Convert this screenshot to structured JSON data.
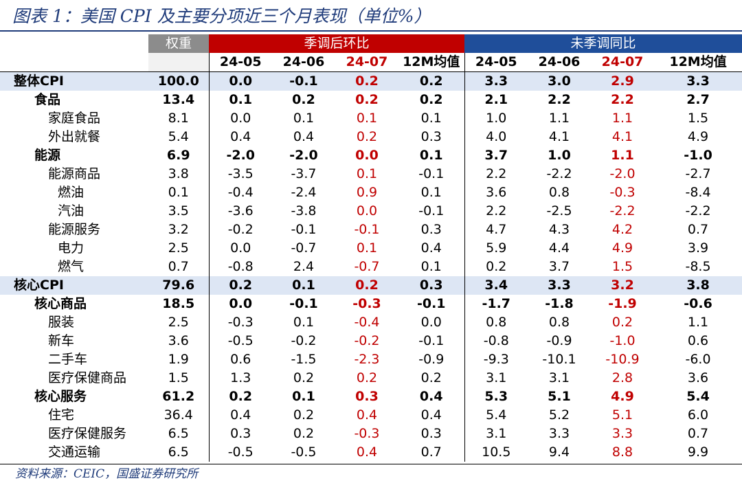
{
  "title": "图表 1：美国 CPI 及主要分项近三个月表现（单位%）",
  "headers": {
    "weight": "权重",
    "sa_group": "季调后环比",
    "nsa_group": "未季调同比",
    "periods": [
      "24-05",
      "24-06",
      "24-07",
      "12M均值",
      "24-05",
      "24-06",
      "24-07",
      "12M均值"
    ]
  },
  "colors": {
    "weight_header": "#8c8c8c",
    "sa_header": "#c00000",
    "nsa_header": "#1f4e9a",
    "band": "#dde6f4",
    "highlight": "#c00000",
    "title": "#1f3b7a"
  },
  "rows": [
    {
      "name": "整体CPI",
      "weight": "100.0",
      "sa": [
        "0.0",
        "-0.1",
        "0.2",
        "0.2"
      ],
      "nsa": [
        "3.3",
        "3.0",
        "2.9",
        "3.3"
      ]
    },
    {
      "name": "食品",
      "weight": "13.4",
      "sa": [
        "0.1",
        "0.2",
        "0.2",
        "0.2"
      ],
      "nsa": [
        "2.1",
        "2.2",
        "2.2",
        "2.7"
      ]
    },
    {
      "name": "家庭食品",
      "weight": "8.1",
      "sa": [
        "0.0",
        "0.1",
        "0.1",
        "0.1"
      ],
      "nsa": [
        "1.0",
        "1.1",
        "1.1",
        "1.5"
      ]
    },
    {
      "name": "外出就餐",
      "weight": "5.4",
      "sa": [
        "0.4",
        "0.4",
        "0.2",
        "0.3"
      ],
      "nsa": [
        "4.0",
        "4.1",
        "4.1",
        "4.9"
      ]
    },
    {
      "name": "能源",
      "weight": "6.9",
      "sa": [
        "-2.0",
        "-2.0",
        "0.0",
        "0.1"
      ],
      "nsa": [
        "3.7",
        "1.0",
        "1.1",
        "-1.0"
      ]
    },
    {
      "name": "能源商品",
      "weight": "3.8",
      "sa": [
        "-3.5",
        "-3.7",
        "0.1",
        "-0.1"
      ],
      "nsa": [
        "2.2",
        "-2.2",
        "-2.0",
        "-2.7"
      ]
    },
    {
      "name": "燃油",
      "weight": "0.1",
      "sa": [
        "-0.4",
        "-2.4",
        "0.9",
        "0.1"
      ],
      "nsa": [
        "3.6",
        "0.8",
        "-0.3",
        "-8.4"
      ]
    },
    {
      "name": "汽油",
      "weight": "3.5",
      "sa": [
        "-3.6",
        "-3.8",
        "0.0",
        "-0.1"
      ],
      "nsa": [
        "2.2",
        "-2.5",
        "-2.2",
        "-2.2"
      ]
    },
    {
      "name": "能源服务",
      "weight": "3.2",
      "sa": [
        "-0.2",
        "-0.1",
        "-0.1",
        "0.3"
      ],
      "nsa": [
        "4.7",
        "4.3",
        "4.2",
        "0.7"
      ]
    },
    {
      "name": "电力",
      "weight": "2.5",
      "sa": [
        "0.0",
        "-0.7",
        "0.1",
        "0.4"
      ],
      "nsa": [
        "5.9",
        "4.4",
        "4.9",
        "3.9"
      ]
    },
    {
      "name": "燃气",
      "weight": "0.7",
      "sa": [
        "-0.8",
        "2.4",
        "-0.7",
        "0.1"
      ],
      "nsa": [
        "0.2",
        "3.7",
        "1.5",
        "-8.5"
      ]
    },
    {
      "name": "核心CPI",
      "weight": "79.6",
      "sa": [
        "0.2",
        "0.1",
        "0.2",
        "0.3"
      ],
      "nsa": [
        "3.4",
        "3.3",
        "3.2",
        "3.8"
      ]
    },
    {
      "name": "核心商品",
      "weight": "18.5",
      "sa": [
        "0.0",
        "-0.1",
        "-0.3",
        "-0.1"
      ],
      "nsa": [
        "-1.7",
        "-1.8",
        "-1.9",
        "-0.6"
      ]
    },
    {
      "name": "服装",
      "weight": "2.5",
      "sa": [
        "-0.3",
        "0.1",
        "-0.4",
        "0.0"
      ],
      "nsa": [
        "0.8",
        "0.8",
        "0.2",
        "1.1"
      ]
    },
    {
      "name": "新车",
      "weight": "3.6",
      "sa": [
        "-0.5",
        "-0.2",
        "-0.2",
        "-0.1"
      ],
      "nsa": [
        "-0.8",
        "-0.9",
        "-1.0",
        "0.6"
      ]
    },
    {
      "name": "二手车",
      "weight": "1.9",
      "sa": [
        "0.6",
        "-1.5",
        "-2.3",
        "-0.9"
      ],
      "nsa": [
        "-9.3",
        "-10.1",
        "-10.9",
        "-6.0"
      ]
    },
    {
      "name": "医疗保健商品",
      "weight": "1.5",
      "sa": [
        "1.3",
        "0.2",
        "0.2",
        "0.2"
      ],
      "nsa": [
        "3.1",
        "3.1",
        "2.8",
        "3.6"
      ]
    },
    {
      "name": "核心服务",
      "weight": "61.2",
      "sa": [
        "0.2",
        "0.1",
        "0.3",
        "0.4"
      ],
      "nsa": [
        "5.3",
        "5.1",
        "4.9",
        "5.4"
      ]
    },
    {
      "name": "住宅",
      "weight": "36.4",
      "sa": [
        "0.4",
        "0.2",
        "0.4",
        "0.4"
      ],
      "nsa": [
        "5.4",
        "5.2",
        "5.1",
        "6.0"
      ]
    },
    {
      "name": "医疗保健服务",
      "weight": "6.5",
      "sa": [
        "0.3",
        "0.2",
        "-0.3",
        "0.3"
      ],
      "nsa": [
        "3.1",
        "3.3",
        "3.3",
        "0.7"
      ]
    },
    {
      "name": "交通运输",
      "weight": "6.5",
      "sa": [
        "-0.5",
        "-0.5",
        "0.4",
        "0.7"
      ],
      "nsa": [
        "10.5",
        "9.4",
        "8.8",
        "9.9"
      ]
    }
  ],
  "source": "资料来源：CEIC，国盛证券研究所"
}
